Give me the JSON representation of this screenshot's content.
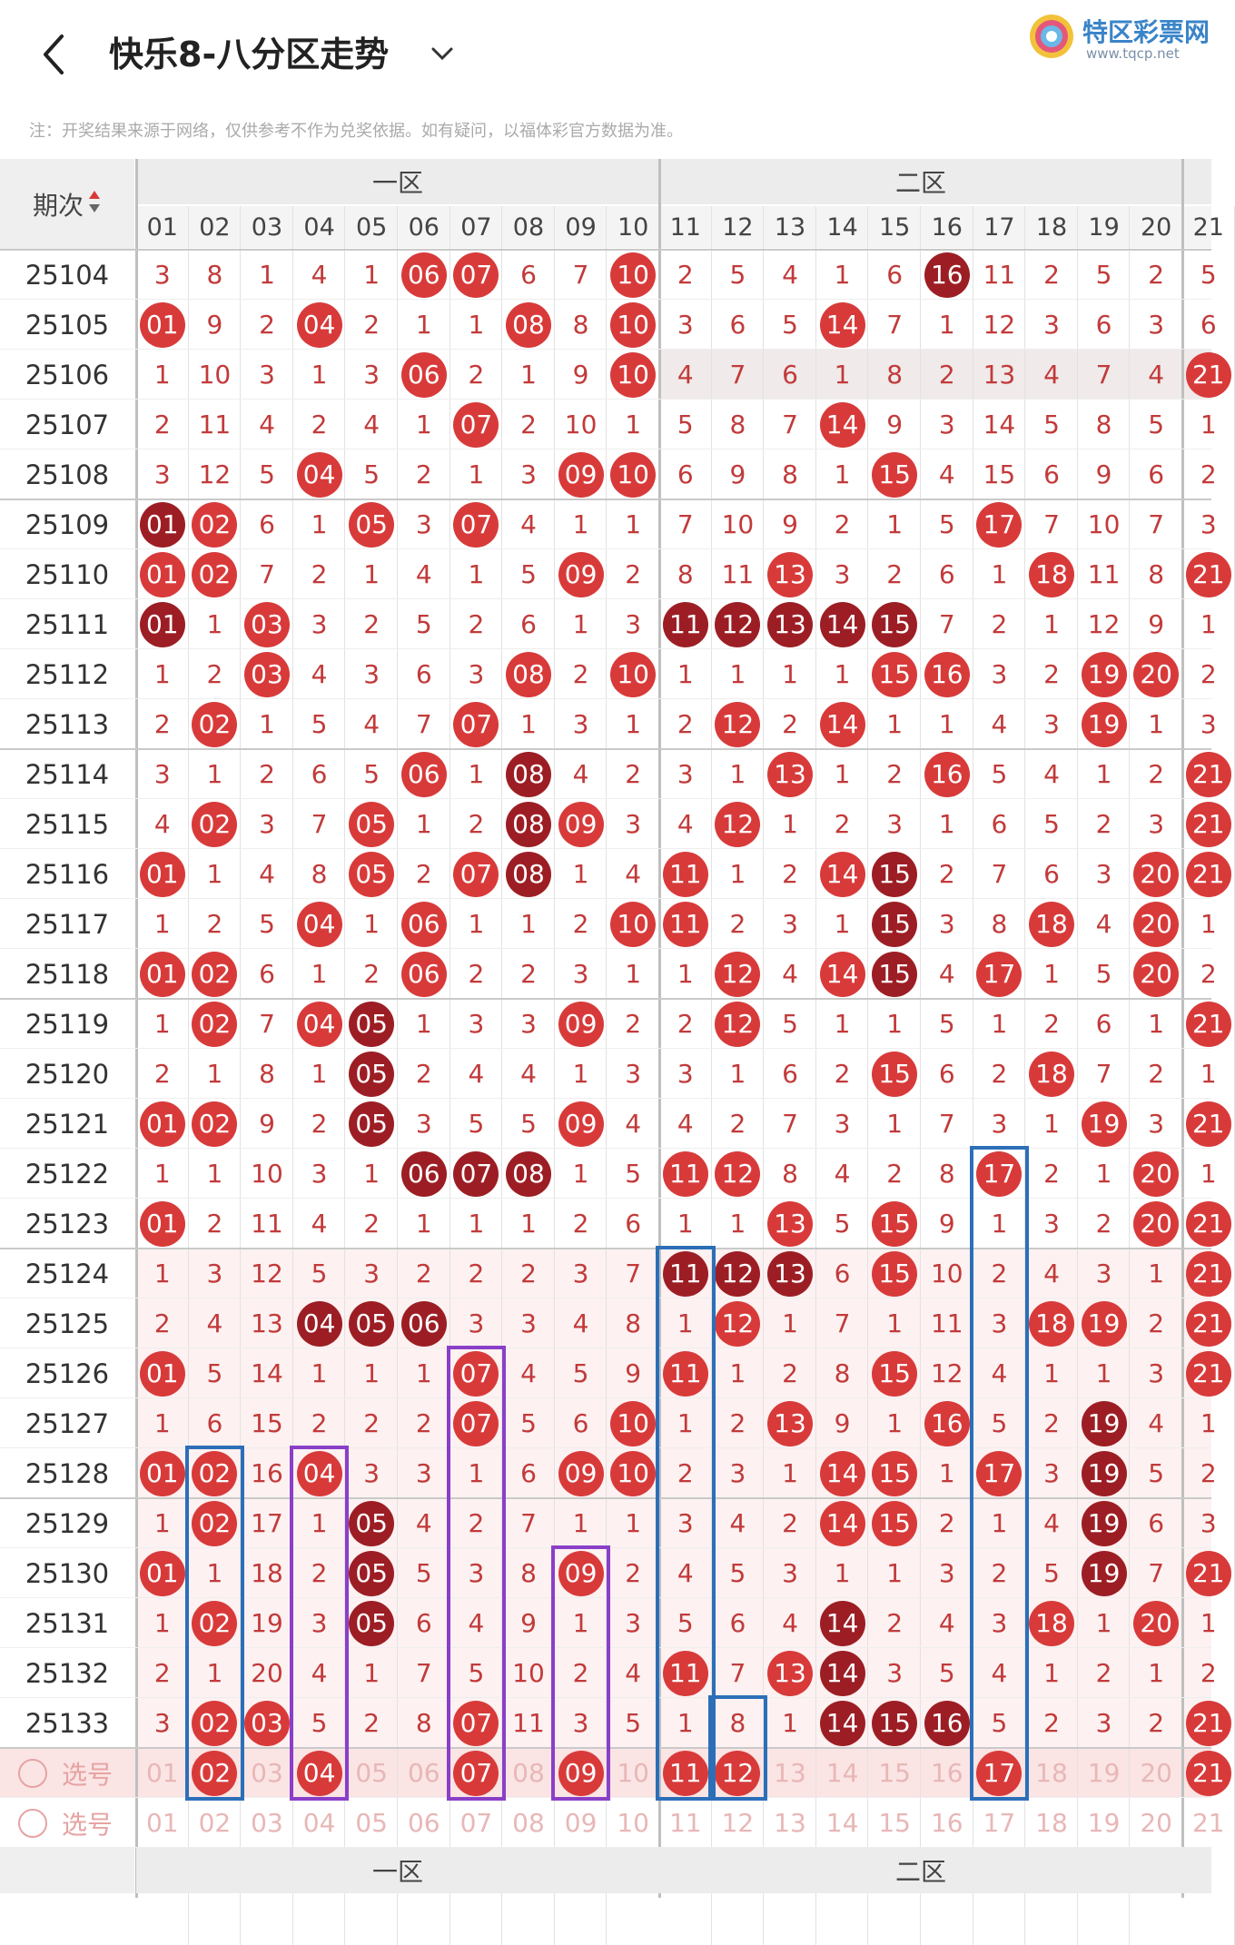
{
  "header": {
    "title": "快乐8-八分区走势",
    "logo_name": "特区彩票网",
    "logo_url": "www.tqcp.net"
  },
  "notice": "注：开奖结果来源于网络，仅供参考不作为兑奖依据。如有疑问，以福体彩官方数据为准。",
  "table": {
    "issue_header": "期次",
    "zones": [
      "一区",
      "二区"
    ],
    "columns": [
      "01",
      "02",
      "03",
      "04",
      "05",
      "06",
      "07",
      "08",
      "09",
      "10",
      "11",
      "12",
      "13",
      "14",
      "15",
      "16",
      "17",
      "18",
      "19",
      "20",
      "21"
    ],
    "rows": [
      {
        "issue": "25104",
        "cells": [
          "3",
          "8",
          "1",
          "4",
          "1",
          "06",
          "07",
          "6",
          "7",
          "10",
          "2",
          "5",
          "4",
          "1",
          "6",
          "16",
          "11",
          "2",
          "5",
          "2",
          "5"
        ]
      },
      {
        "issue": "25105",
        "cells": [
          "01",
          "9",
          "2",
          "04",
          "2",
          "1",
          "1",
          "08",
          "8",
          "10",
          "3",
          "6",
          "5",
          "14",
          "7",
          "1",
          "12",
          "3",
          "6",
          "3",
          "6"
        ]
      },
      {
        "issue": "25106",
        "cells": [
          "1",
          "10",
          "3",
          "1",
          "3",
          "06",
          "2",
          "1",
          "9",
          "10",
          "4",
          "7",
          "6",
          "1",
          "8",
          "2",
          "13",
          "4",
          "7",
          "4",
          "21"
        ]
      },
      {
        "issue": "25107",
        "cells": [
          "2",
          "11",
          "4",
          "2",
          "4",
          "1",
          "07",
          "2",
          "10",
          "1",
          "5",
          "8",
          "7",
          "14",
          "9",
          "3",
          "14",
          "5",
          "8",
          "5",
          "1"
        ]
      },
      {
        "issue": "25108",
        "cells": [
          "3",
          "12",
          "5",
          "04",
          "5",
          "2",
          "1",
          "3",
          "09",
          "10",
          "6",
          "9",
          "8",
          "1",
          "15",
          "4",
          "15",
          "6",
          "9",
          "6",
          "2"
        ]
      },
      {
        "issue": "25109",
        "cells": [
          "01",
          "02",
          "6",
          "1",
          "05",
          "3",
          "07",
          "4",
          "1",
          "1",
          "7",
          "10",
          "9",
          "2",
          "1",
          "5",
          "17",
          "7",
          "10",
          "7",
          "3"
        ]
      },
      {
        "issue": "25110",
        "cells": [
          "01",
          "02",
          "7",
          "2",
          "1",
          "4",
          "1",
          "5",
          "09",
          "2",
          "8",
          "11",
          "13",
          "3",
          "2",
          "6",
          "1",
          "18",
          "11",
          "8",
          "21"
        ]
      },
      {
        "issue": "25111",
        "cells": [
          "01",
          "1",
          "03",
          "3",
          "2",
          "5",
          "2",
          "6",
          "1",
          "3",
          "11",
          "12",
          "13",
          "14",
          "15",
          "7",
          "2",
          "1",
          "12",
          "9",
          "1"
        ]
      },
      {
        "issue": "25112",
        "cells": [
          "1",
          "2",
          "03",
          "4",
          "3",
          "6",
          "3",
          "08",
          "2",
          "10",
          "1",
          "1",
          "1",
          "1",
          "15",
          "16",
          "3",
          "2",
          "19",
          "20",
          "2"
        ]
      },
      {
        "issue": "25113",
        "cells": [
          "2",
          "02",
          "1",
          "5",
          "4",
          "7",
          "07",
          "1",
          "3",
          "1",
          "2",
          "12",
          "2",
          "14",
          "1",
          "1",
          "4",
          "3",
          "19",
          "1",
          "3"
        ]
      },
      {
        "issue": "25114",
        "cells": [
          "3",
          "1",
          "2",
          "6",
          "5",
          "06",
          "1",
          "08",
          "4",
          "2",
          "3",
          "1",
          "13",
          "1",
          "2",
          "16",
          "5",
          "4",
          "1",
          "2",
          "21"
        ]
      },
      {
        "issue": "25115",
        "cells": [
          "4",
          "02",
          "3",
          "7",
          "05",
          "1",
          "2",
          "08",
          "09",
          "3",
          "4",
          "12",
          "1",
          "2",
          "3",
          "1",
          "6",
          "5",
          "2",
          "3",
          "21"
        ]
      },
      {
        "issue": "25116",
        "cells": [
          "01",
          "1",
          "4",
          "8",
          "05",
          "2",
          "07",
          "08",
          "1",
          "4",
          "11",
          "1",
          "2",
          "14",
          "15",
          "2",
          "7",
          "6",
          "3",
          "20",
          "21"
        ]
      },
      {
        "issue": "25117",
        "cells": [
          "1",
          "2",
          "5",
          "04",
          "1",
          "06",
          "1",
          "1",
          "2",
          "10",
          "11",
          "2",
          "3",
          "1",
          "15",
          "3",
          "8",
          "18",
          "4",
          "20",
          "1"
        ]
      },
      {
        "issue": "25118",
        "cells": [
          "01",
          "02",
          "6",
          "1",
          "2",
          "06",
          "2",
          "2",
          "3",
          "1",
          "1",
          "12",
          "4",
          "14",
          "15",
          "4",
          "17",
          "1",
          "5",
          "20",
          "2"
        ]
      },
      {
        "issue": "25119",
        "cells": [
          "1",
          "02",
          "7",
          "04",
          "05",
          "1",
          "3",
          "3",
          "09",
          "2",
          "2",
          "12",
          "5",
          "1",
          "1",
          "5",
          "1",
          "2",
          "6",
          "1",
          "21"
        ]
      },
      {
        "issue": "25120",
        "cells": [
          "2",
          "1",
          "8",
          "1",
          "05",
          "2",
          "4",
          "4",
          "1",
          "3",
          "3",
          "1",
          "6",
          "2",
          "15",
          "6",
          "2",
          "18",
          "7",
          "2",
          "1"
        ]
      },
      {
        "issue": "25121",
        "cells": [
          "01",
          "02",
          "9",
          "2",
          "05",
          "3",
          "5",
          "5",
          "09",
          "4",
          "4",
          "2",
          "7",
          "3",
          "1",
          "7",
          "3",
          "1",
          "19",
          "3",
          "21"
        ]
      },
      {
        "issue": "25122",
        "cells": [
          "1",
          "1",
          "10",
          "3",
          "1",
          "06",
          "07",
          "08",
          "1",
          "5",
          "11",
          "12",
          "8",
          "4",
          "2",
          "8",
          "17",
          "2",
          "1",
          "20",
          "1"
        ]
      },
      {
        "issue": "25123",
        "cells": [
          "01",
          "2",
          "11",
          "4",
          "2",
          "1",
          "1",
          "1",
          "2",
          "6",
          "1",
          "1",
          "13",
          "5",
          "15",
          "9",
          "1",
          "3",
          "2",
          "20",
          "21"
        ]
      },
      {
        "issue": "25124",
        "cells": [
          "1",
          "3",
          "12",
          "5",
          "3",
          "2",
          "2",
          "2",
          "3",
          "7",
          "11",
          "12",
          "13",
          "6",
          "15",
          "10",
          "2",
          "4",
          "3",
          "1",
          "21"
        ]
      },
      {
        "issue": "25125",
        "cells": [
          "2",
          "4",
          "13",
          "04",
          "05",
          "06",
          "3",
          "3",
          "4",
          "8",
          "1",
          "12",
          "1",
          "7",
          "1",
          "11",
          "3",
          "18",
          "19",
          "2",
          "21"
        ]
      },
      {
        "issue": "25126",
        "cells": [
          "01",
          "5",
          "14",
          "1",
          "1",
          "1",
          "07",
          "4",
          "5",
          "9",
          "11",
          "1",
          "2",
          "8",
          "15",
          "12",
          "4",
          "1",
          "1",
          "3",
          "21"
        ]
      },
      {
        "issue": "25127",
        "cells": [
          "1",
          "6",
          "15",
          "2",
          "2",
          "2",
          "07",
          "5",
          "6",
          "10",
          "1",
          "2",
          "13",
          "9",
          "1",
          "16",
          "5",
          "2",
          "19",
          "4",
          "1"
        ]
      },
      {
        "issue": "25128",
        "cells": [
          "01",
          "02",
          "16",
          "04",
          "3",
          "3",
          "1",
          "6",
          "09",
          "10",
          "2",
          "3",
          "1",
          "14",
          "15",
          "1",
          "17",
          "3",
          "19",
          "5",
          "2"
        ]
      },
      {
        "issue": "25129",
        "cells": [
          "1",
          "02",
          "17",
          "1",
          "05",
          "4",
          "2",
          "7",
          "1",
          "1",
          "3",
          "4",
          "2",
          "14",
          "15",
          "2",
          "1",
          "4",
          "19",
          "6",
          "3"
        ]
      },
      {
        "issue": "25130",
        "cells": [
          "01",
          "1",
          "18",
          "2",
          "05",
          "5",
          "3",
          "8",
          "09",
          "2",
          "4",
          "5",
          "3",
          "1",
          "1",
          "3",
          "2",
          "5",
          "19",
          "7",
          "21"
        ]
      },
      {
        "issue": "25131",
        "cells": [
          "1",
          "02",
          "19",
          "3",
          "05",
          "6",
          "4",
          "9",
          "1",
          "3",
          "5",
          "6",
          "4",
          "14",
          "2",
          "4",
          "3",
          "18",
          "1",
          "20",
          "1"
        ]
      },
      {
        "issue": "25132",
        "cells": [
          "2",
          "1",
          "20",
          "4",
          "1",
          "7",
          "5",
          "10",
          "2",
          "4",
          "11",
          "7",
          "13",
          "14",
          "3",
          "5",
          "4",
          "1",
          "2",
          "1",
          "2"
        ]
      },
      {
        "issue": "25133",
        "cells": [
          "3",
          "02",
          "03",
          "5",
          "2",
          "8",
          "07",
          "11",
          "3",
          "5",
          "1",
          "8",
          "1",
          "14",
          "15",
          "16",
          "5",
          "2",
          "3",
          "2",
          "21"
        ]
      }
    ],
    "select_rows": [
      {
        "label": "选号",
        "selected": [
          "02",
          "04",
          "07",
          "09",
          "11",
          "12",
          "17",
          "21"
        ]
      },
      {
        "label": "选号",
        "selected": []
      }
    ]
  }
}
